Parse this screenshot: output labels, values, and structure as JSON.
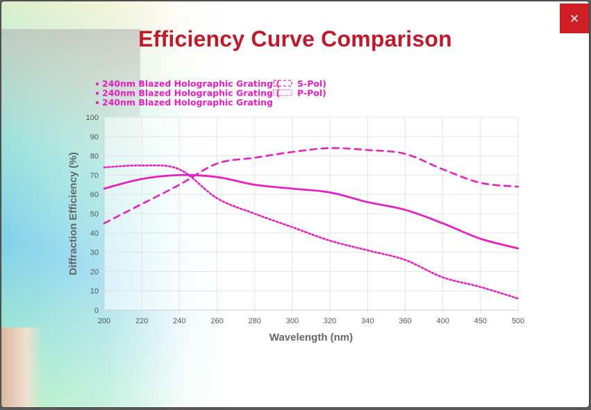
{
  "dialog": {
    "title": "Efficiency Curve Comparison",
    "close_label": "×"
  },
  "chart_data": {
    "type": "line",
    "xlabel": "Wavelength (nm)",
    "ylabel": "Diffraction Efficiency (%)",
    "x_ticks": [
      "200",
      "220",
      "240",
      "260",
      "280",
      "300",
      "320",
      "340",
      "360",
      "400",
      "450",
      "500"
    ],
    "ylim": [
      0,
      100
    ],
    "y_ticks": [
      "0",
      "10",
      "20",
      "30",
      "40",
      "50",
      "60",
      "70",
      "80",
      "90",
      "100"
    ],
    "grid": true,
    "legend_position": "top-left",
    "color": "#e61ec4",
    "series": [
      {
        "name": "240nm Blazed Holographic Grating ( S-Pol)",
        "legend_prefix": "240nm Blazed Holographic Grating (",
        "legend_suffix": "S-Pol)",
        "style": "dashed",
        "values": [
          45,
          55,
          65,
          76,
          79,
          82,
          84,
          83,
          81,
          73,
          66,
          64
        ]
      },
      {
        "name": "240nm Blazed Holographic Grating ( P-Pol)",
        "legend_prefix": "240nm Blazed Holographic Grating (",
        "legend_suffix": "P-Pol)",
        "style": "dotted",
        "values": [
          74,
          75,
          73,
          58,
          50,
          43,
          36,
          31,
          26,
          17,
          12,
          6
        ]
      },
      {
        "name": "240nm Blazed Holographic Grating",
        "legend_prefix": "240nm Blazed Holographic Grating",
        "legend_suffix": "",
        "style": "solid",
        "values": [
          63,
          68,
          70,
          69,
          65,
          63,
          61,
          56,
          52,
          45,
          37,
          32
        ]
      }
    ]
  }
}
